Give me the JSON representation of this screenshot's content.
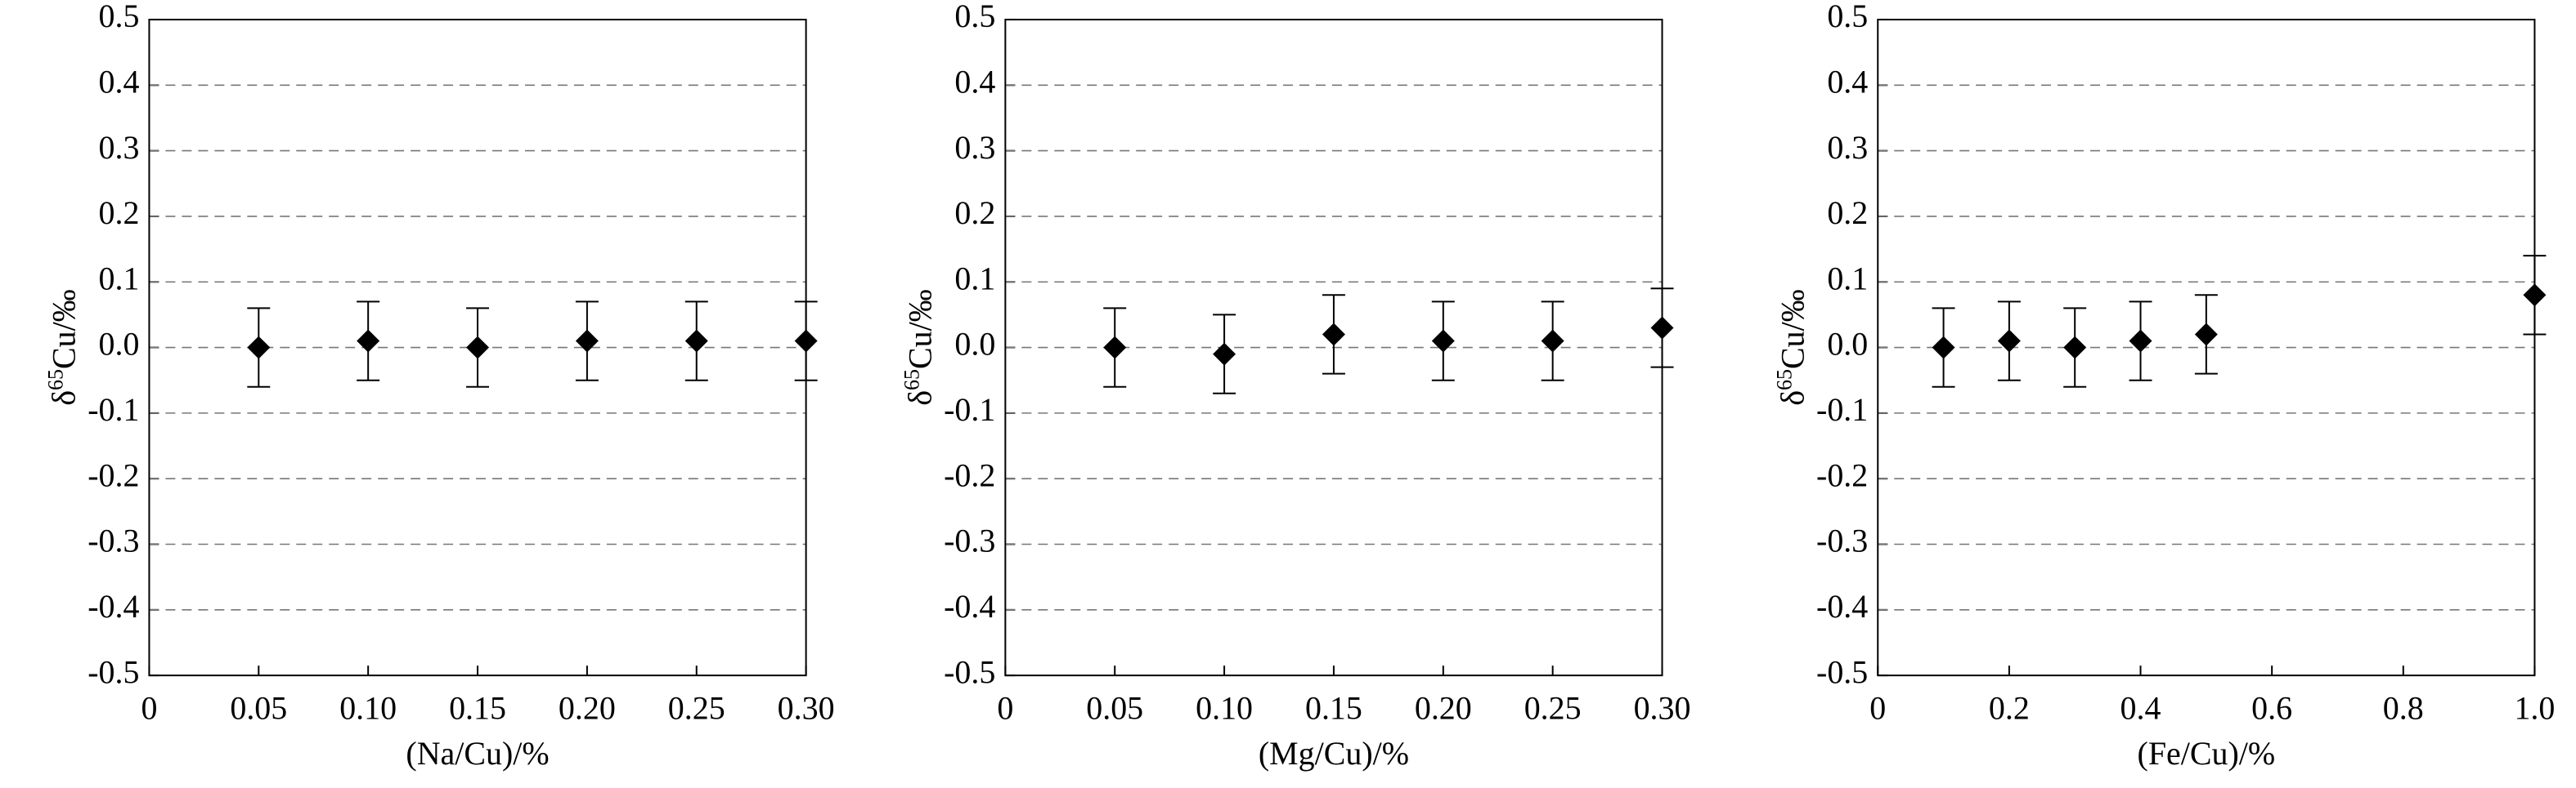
{
  "chart_data": [
    {
      "type": "scatter",
      "xlabel": "(Na/Cu)/%",
      "ylabel": [
        "δ",
        "65",
        "Cu/‰"
      ],
      "x": [
        0.05,
        0.1,
        0.15,
        0.2,
        0.25,
        0.3
      ],
      "values": [
        0,
        0.01,
        0,
        0.01,
        0.01,
        0.01
      ],
      "errors": [
        0.06,
        0.06,
        0.06,
        0.06,
        0.06,
        0.06
      ],
      "color": "#000000",
      "xlim": [
        0,
        0.3
      ],
      "ylim": [
        -0.5,
        0.5
      ],
      "xticks": [
        0,
        0.05,
        {
          "value": 0.1,
          "label": "0.10"
        },
        0.15,
        {
          "value": 0.2,
          "label": "0.20"
        },
        0.25,
        {
          "value": 0.3,
          "label": "0.30"
        }
      ],
      "yticks": [
        0.5,
        0.4,
        0.3,
        0.2,
        0.1,
        {
          "value": 0,
          "label": "0.0"
        },
        -0.1,
        -0.2,
        -0.3,
        -0.4,
        -0.5
      ],
      "grid": true
    },
    {
      "type": "scatter",
      "xlabel": "(Mg/Cu)/%",
      "ylabel": [
        "δ",
        "65",
        "Cu/‰"
      ],
      "x": [
        0.05,
        0.1,
        0.15,
        0.2,
        0.25,
        0.3
      ],
      "values": [
        0,
        -0.01,
        0.02,
        0.01,
        0.01,
        0.03
      ],
      "errors": [
        0.06,
        0.06,
        0.06,
        0.06,
        0.06,
        0.06
      ],
      "color": "#000000",
      "xlim": [
        0,
        0.3
      ],
      "ylim": [
        -0.5,
        0.5
      ],
      "xticks": [
        0,
        0.05,
        {
          "value": 0.1,
          "label": "0.10"
        },
        0.15,
        {
          "value": 0.2,
          "label": "0.20"
        },
        0.25,
        {
          "value": 0.3,
          "label": "0.30"
        }
      ],
      "yticks": [
        0.5,
        0.4,
        0.3,
        0.2,
        0.1,
        {
          "value": 0,
          "label": "0.0"
        },
        -0.1,
        -0.2,
        -0.3,
        -0.4,
        -0.5
      ],
      "grid": true
    },
    {
      "type": "scatter",
      "xlabel": "(Fe/Cu)/%",
      "ylabel": [
        "δ",
        "65",
        "Cu/‰"
      ],
      "x": [
        0.1,
        0.2,
        0.3,
        0.4,
        0.5,
        1.0
      ],
      "values": [
        0,
        0.01,
        0,
        0.01,
        0.02,
        0.08
      ],
      "errors": [
        0.06,
        0.06,
        0.06,
        0.06,
        0.06,
        0.06
      ],
      "color": "#000000",
      "xlim": [
        0,
        1.0
      ],
      "ylim": [
        -0.5,
        0.5
      ],
      "xticks": [
        0,
        0.2,
        0.4,
        0.6,
        0.8,
        {
          "value": 1,
          "label": "1.0"
        }
      ],
      "yticks": [
        0.5,
        0.4,
        0.3,
        0.2,
        0.1,
        {
          "value": 0,
          "label": "0.0"
        },
        -0.1,
        -0.2,
        -0.3,
        -0.4,
        -0.5
      ],
      "grid": true
    }
  ]
}
